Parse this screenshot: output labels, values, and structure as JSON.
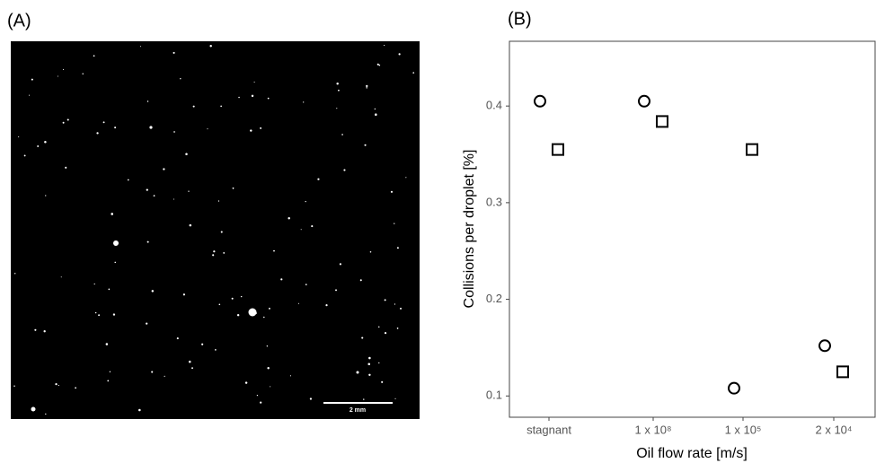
{
  "panel_a": {
    "label": "(A)",
    "scale_bar": "2 mm"
  },
  "chart_data": {
    "type": "scatter",
    "panel_label": "(B)",
    "x_label": "Oil flow rate [m/s]",
    "y_label": "Collisions per droplet [%]",
    "categories": [
      "stagnant",
      "1 x 10⁸",
      "1 x 10⁵",
      "2 x 10⁴"
    ],
    "series": [
      {
        "marker": "circle",
        "color": "#000000",
        "values": [
          0.405,
          0.405,
          0.108,
          0.152
        ]
      },
      {
        "marker": "square",
        "color": "#000000",
        "values": [
          0.355,
          0.384,
          0.355,
          0.125
        ]
      }
    ],
    "ylim": [
      0.078,
      0.467
    ],
    "yticks": [
      0.1,
      0.2,
      0.3,
      0.4
    ],
    "grid": false
  }
}
